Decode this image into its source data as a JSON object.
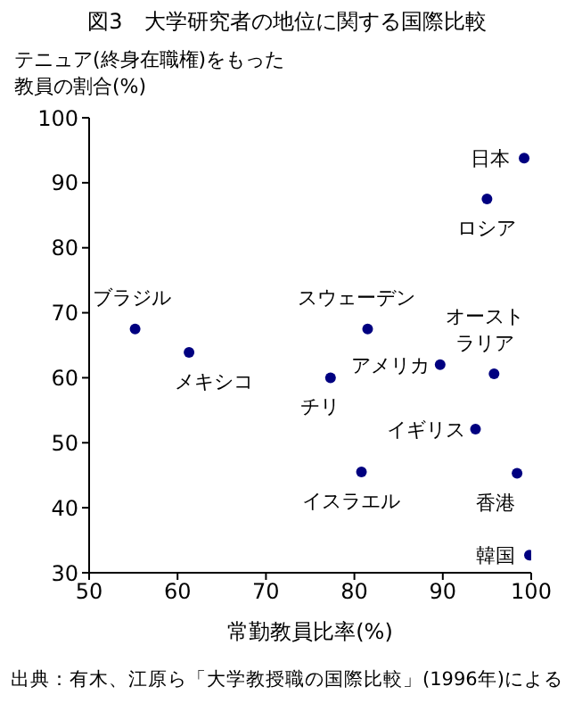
{
  "chart_data": {
    "type": "scatter",
    "title": "図3　大学研究者の地位に関する国際比較",
    "xlabel": "常勤教員比率(%)",
    "ylabel": "テニュア(終身在職権)をもった教員の割合(%)",
    "x": [
      99.2,
      95.0,
      55.2,
      61.3,
      81.5,
      89.7,
      95.8,
      77.3,
      93.7,
      80.8,
      98.4,
      99.8
    ],
    "series": [
      {
        "color": "#000080",
        "values": [
          93.8,
          87.5,
          67.5,
          63.9,
          67.5,
          62.0,
          60.6,
          60.0,
          52.1,
          45.5,
          45.3,
          32.7
        ]
      }
    ],
    "marker": "circle",
    "xlim": [
      50,
      100
    ],
    "xticks": [
      50,
      60,
      70,
      80,
      90,
      100
    ],
    "ylim": [
      30,
      100
    ],
    "yticks": [
      30,
      40,
      50,
      60,
      70,
      80,
      90,
      100
    ],
    "annotations": [
      {
        "text": "日本",
        "x": 99.2,
        "y": 93.8
      },
      {
        "text": "ロシア",
        "x": 95.0,
        "y": 87.5
      },
      {
        "text": "ブラジル",
        "x": 55.2,
        "y": 67.5
      },
      {
        "text": "メキシコ",
        "x": 61.3,
        "y": 63.9
      },
      {
        "text": "スウェーデン",
        "x": 81.5,
        "y": 67.5
      },
      {
        "text": "アメリカ",
        "x": 89.7,
        "y": 62.0
      },
      {
        "text": "オーストラリア",
        "x": 95.8,
        "y": 60.6
      },
      {
        "text": "チリ",
        "x": 77.3,
        "y": 60.0
      },
      {
        "text": "イギリス",
        "x": 93.7,
        "y": 52.1
      },
      {
        "text": "イスラエル",
        "x": 80.8,
        "y": 45.5
      },
      {
        "text": "香港",
        "x": 98.4,
        "y": 45.3
      },
      {
        "text": "韓国",
        "x": 99.8,
        "y": 32.7
      },
      "出典：有木、江原ら「大学教授職の国際比較」(1996年)による"
    ]
  }
}
